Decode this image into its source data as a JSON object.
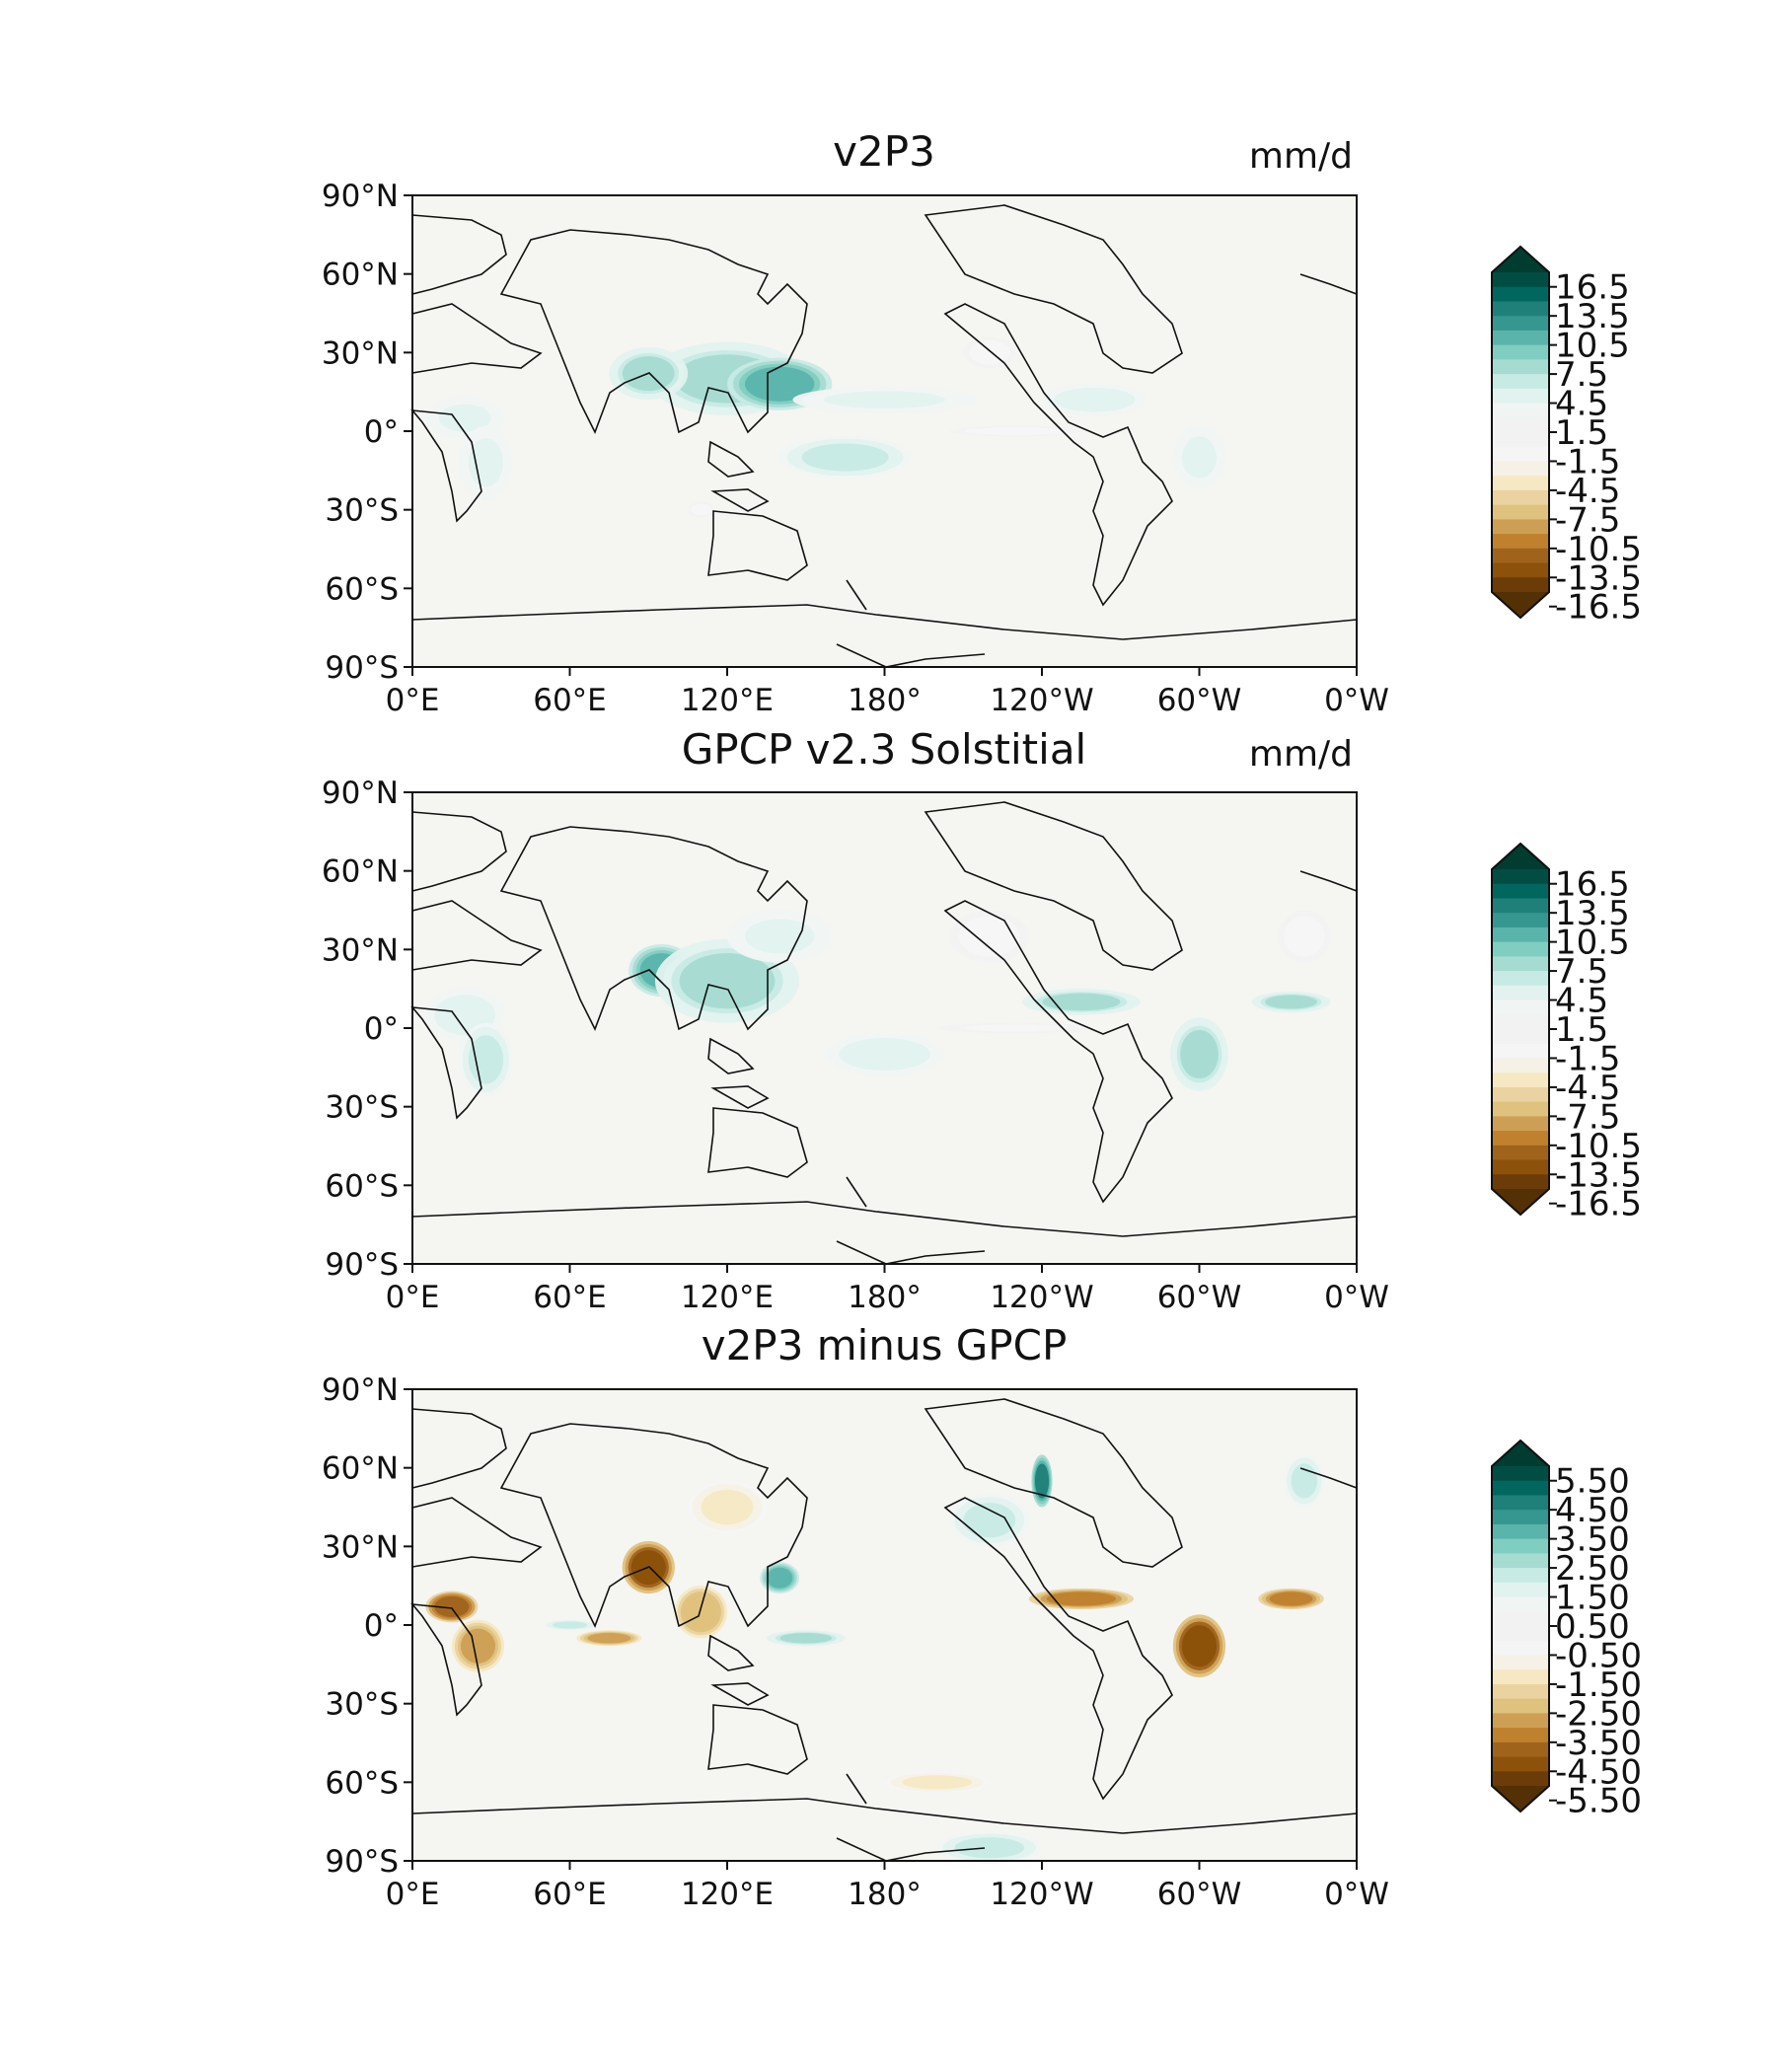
{
  "chart_data": [
    {
      "type": "heatmap",
      "title": "v2P3",
      "units": "mm/d",
      "xticks": [
        "0°E",
        "60°E",
        "120°E",
        "180°",
        "120°W",
        "60°W",
        "0°W"
      ],
      "yticks": [
        "90°N",
        "60°N",
        "30°N",
        "0°",
        "30°S",
        "60°S",
        "90°S"
      ],
      "colorbar": {
        "extend": "both",
        "levels": [
          -18,
          -16.5,
          -15,
          -13.5,
          -12,
          -10.5,
          -9,
          -7.5,
          -6,
          -4.5,
          -3,
          -1.5,
          0,
          1.5,
          3,
          4.5,
          6,
          7.5,
          9,
          10.5,
          12,
          13.5,
          15,
          16.5,
          18
        ],
        "tick_labels": [
          "16.5",
          "13.5",
          "10.5",
          "7.5",
          "4.5",
          "1.5",
          "-1.5",
          "-4.5",
          "-7.5",
          "-10.5",
          "-13.5",
          "-16.5"
        ]
      },
      "features": [
        {
          "lon": 120,
          "lat": 20,
          "w": 60,
          "h": 14,
          "v": 6
        },
        {
          "lon": 140,
          "lat": 18,
          "w": 40,
          "h": 10,
          "v": 9
        },
        {
          "lon": 90,
          "lat": 22,
          "w": 30,
          "h": 10,
          "v": 6
        },
        {
          "lon": 180,
          "lat": 12,
          "w": 70,
          "h": 5,
          "v": 3
        },
        {
          "lon": 260,
          "lat": 12,
          "w": 40,
          "h": 6,
          "v": 4
        },
        {
          "lon": 20,
          "lat": 5,
          "w": 30,
          "h": 8,
          "v": 3
        },
        {
          "lon": 28,
          "lat": -12,
          "w": 20,
          "h": 14,
          "v": 3
        },
        {
          "lon": 165,
          "lat": -10,
          "w": 50,
          "h": 8,
          "v": 5
        },
        {
          "lon": 300,
          "lat": -10,
          "w": 20,
          "h": 12,
          "v": 3
        },
        {
          "lon": 220,
          "lat": 30,
          "w": 20,
          "h": 6,
          "v": -2
        },
        {
          "lon": 230,
          "lat": 0,
          "w": 50,
          "h": 2,
          "v": -2
        },
        {
          "lon": 110,
          "lat": -30,
          "w": 10,
          "h": 3,
          "v": -2
        }
      ]
    },
    {
      "type": "heatmap",
      "title": "GPCP v2.3 Solstitial",
      "units": "mm/d",
      "xticks": [
        "0°E",
        "60°E",
        "120°E",
        "180°",
        "120°W",
        "60°W",
        "0°W"
      ],
      "yticks": [
        "90°N",
        "60°N",
        "30°N",
        "0°",
        "30°S",
        "60°S",
        "90°S"
      ],
      "colorbar": {
        "extend": "both",
        "levels": [
          -18,
          -16.5,
          -15,
          -13.5,
          -12,
          -10.5,
          -9,
          -7.5,
          -6,
          -4.5,
          -3,
          -1.5,
          0,
          1.5,
          3,
          4.5,
          6,
          7.5,
          9,
          10.5,
          12,
          13.5,
          15,
          16.5,
          18
        ],
        "tick_labels": [
          "16.5",
          "13.5",
          "10.5",
          "7.5",
          "4.5",
          "1.5",
          "-1.5",
          "-4.5",
          "-7.5",
          "-10.5",
          "-13.5",
          "-16.5"
        ]
      },
      "features": [
        {
          "lon": 95,
          "lat": 22,
          "w": 25,
          "h": 10,
          "v": 10
        },
        {
          "lon": 120,
          "lat": 18,
          "w": 55,
          "h": 16,
          "v": 6
        },
        {
          "lon": 140,
          "lat": 35,
          "w": 40,
          "h": 10,
          "v": 3
        },
        {
          "lon": 255,
          "lat": 10,
          "w": 45,
          "h": 5,
          "v": 6
        },
        {
          "lon": 335,
          "lat": 10,
          "w": 30,
          "h": 4,
          "v": 6
        },
        {
          "lon": 20,
          "lat": 5,
          "w": 30,
          "h": 10,
          "v": 4
        },
        {
          "lon": 28,
          "lat": -12,
          "w": 20,
          "h": 14,
          "v": 5
        },
        {
          "lon": 300,
          "lat": -10,
          "w": 22,
          "h": 14,
          "v": 6
        },
        {
          "lon": 180,
          "lat": -10,
          "w": 45,
          "h": 8,
          "v": 4
        },
        {
          "lon": 220,
          "lat": 35,
          "w": 30,
          "h": 10,
          "v": -2
        },
        {
          "lon": 340,
          "lat": 35,
          "w": 20,
          "h": 10,
          "v": -2
        },
        {
          "lon": 230,
          "lat": 0,
          "w": 60,
          "h": 2,
          "v": -1.6
        }
      ]
    },
    {
      "type": "heatmap",
      "title": "v2P3 minus GPCP",
      "units": "",
      "xticks": [
        "0°E",
        "60°E",
        "120°E",
        "180°",
        "120°W",
        "60°W",
        "0°W"
      ],
      "yticks": [
        "90°N",
        "60°N",
        "30°N",
        "0°",
        "30°S",
        "60°S",
        "90°S"
      ],
      "colorbar": {
        "extend": "both",
        "levels": [
          -6,
          -5.5,
          -5,
          -4.5,
          -4,
          -3.5,
          -3,
          -2.5,
          -2,
          -1.5,
          -1,
          -0.5,
          0,
          0.5,
          1,
          1.5,
          2,
          2.5,
          3,
          3.5,
          4,
          4.5,
          5,
          5.5,
          6
        ],
        "tick_labels": [
          "5.50",
          "4.50",
          "3.50",
          "2.50",
          "1.50",
          "0.50",
          "-0.50",
          "-1.50",
          "-2.50",
          "-3.50",
          "-4.50",
          "-5.50"
        ]
      },
      "features": [
        {
          "lon": 15,
          "lat": 7,
          "w": 20,
          "h": 6,
          "v": -4.5
        },
        {
          "lon": 25,
          "lat": -8,
          "w": 20,
          "h": 10,
          "v": -3.5
        },
        {
          "lon": 90,
          "lat": 22,
          "w": 20,
          "h": 10,
          "v": -5
        },
        {
          "lon": 110,
          "lat": 5,
          "w": 20,
          "h": 10,
          "v": -3
        },
        {
          "lon": 75,
          "lat": -5,
          "w": 25,
          "h": 3,
          "v": -3.5
        },
        {
          "lon": 255,
          "lat": 10,
          "w": 40,
          "h": 4,
          "v": -4
        },
        {
          "lon": 335,
          "lat": 10,
          "w": 25,
          "h": 4,
          "v": -4
        },
        {
          "lon": 300,
          "lat": -8,
          "w": 20,
          "h": 12,
          "v": -5
        },
        {
          "lon": 140,
          "lat": 18,
          "w": 15,
          "h": 6,
          "v": 3
        },
        {
          "lon": 220,
          "lat": 40,
          "w": 30,
          "h": 10,
          "v": 1.6
        },
        {
          "lon": 240,
          "lat": 55,
          "w": 8,
          "h": 10,
          "v": 4
        },
        {
          "lon": 150,
          "lat": -5,
          "w": 30,
          "h": 3,
          "v": 2
        },
        {
          "lon": 60,
          "lat": 0,
          "w": 20,
          "h": 2,
          "v": 1.5
        },
        {
          "lon": 200,
          "lat": -60,
          "w": 40,
          "h": 4,
          "v": -1.6
        },
        {
          "lon": 220,
          "lat": -85,
          "w": 40,
          "h": 6,
          "v": 1.6
        },
        {
          "lon": 340,
          "lat": 55,
          "w": 15,
          "h": 10,
          "v": 1.6
        },
        {
          "lon": 120,
          "lat": 45,
          "w": 30,
          "h": 10,
          "v": -1.6
        }
      ]
    }
  ]
}
